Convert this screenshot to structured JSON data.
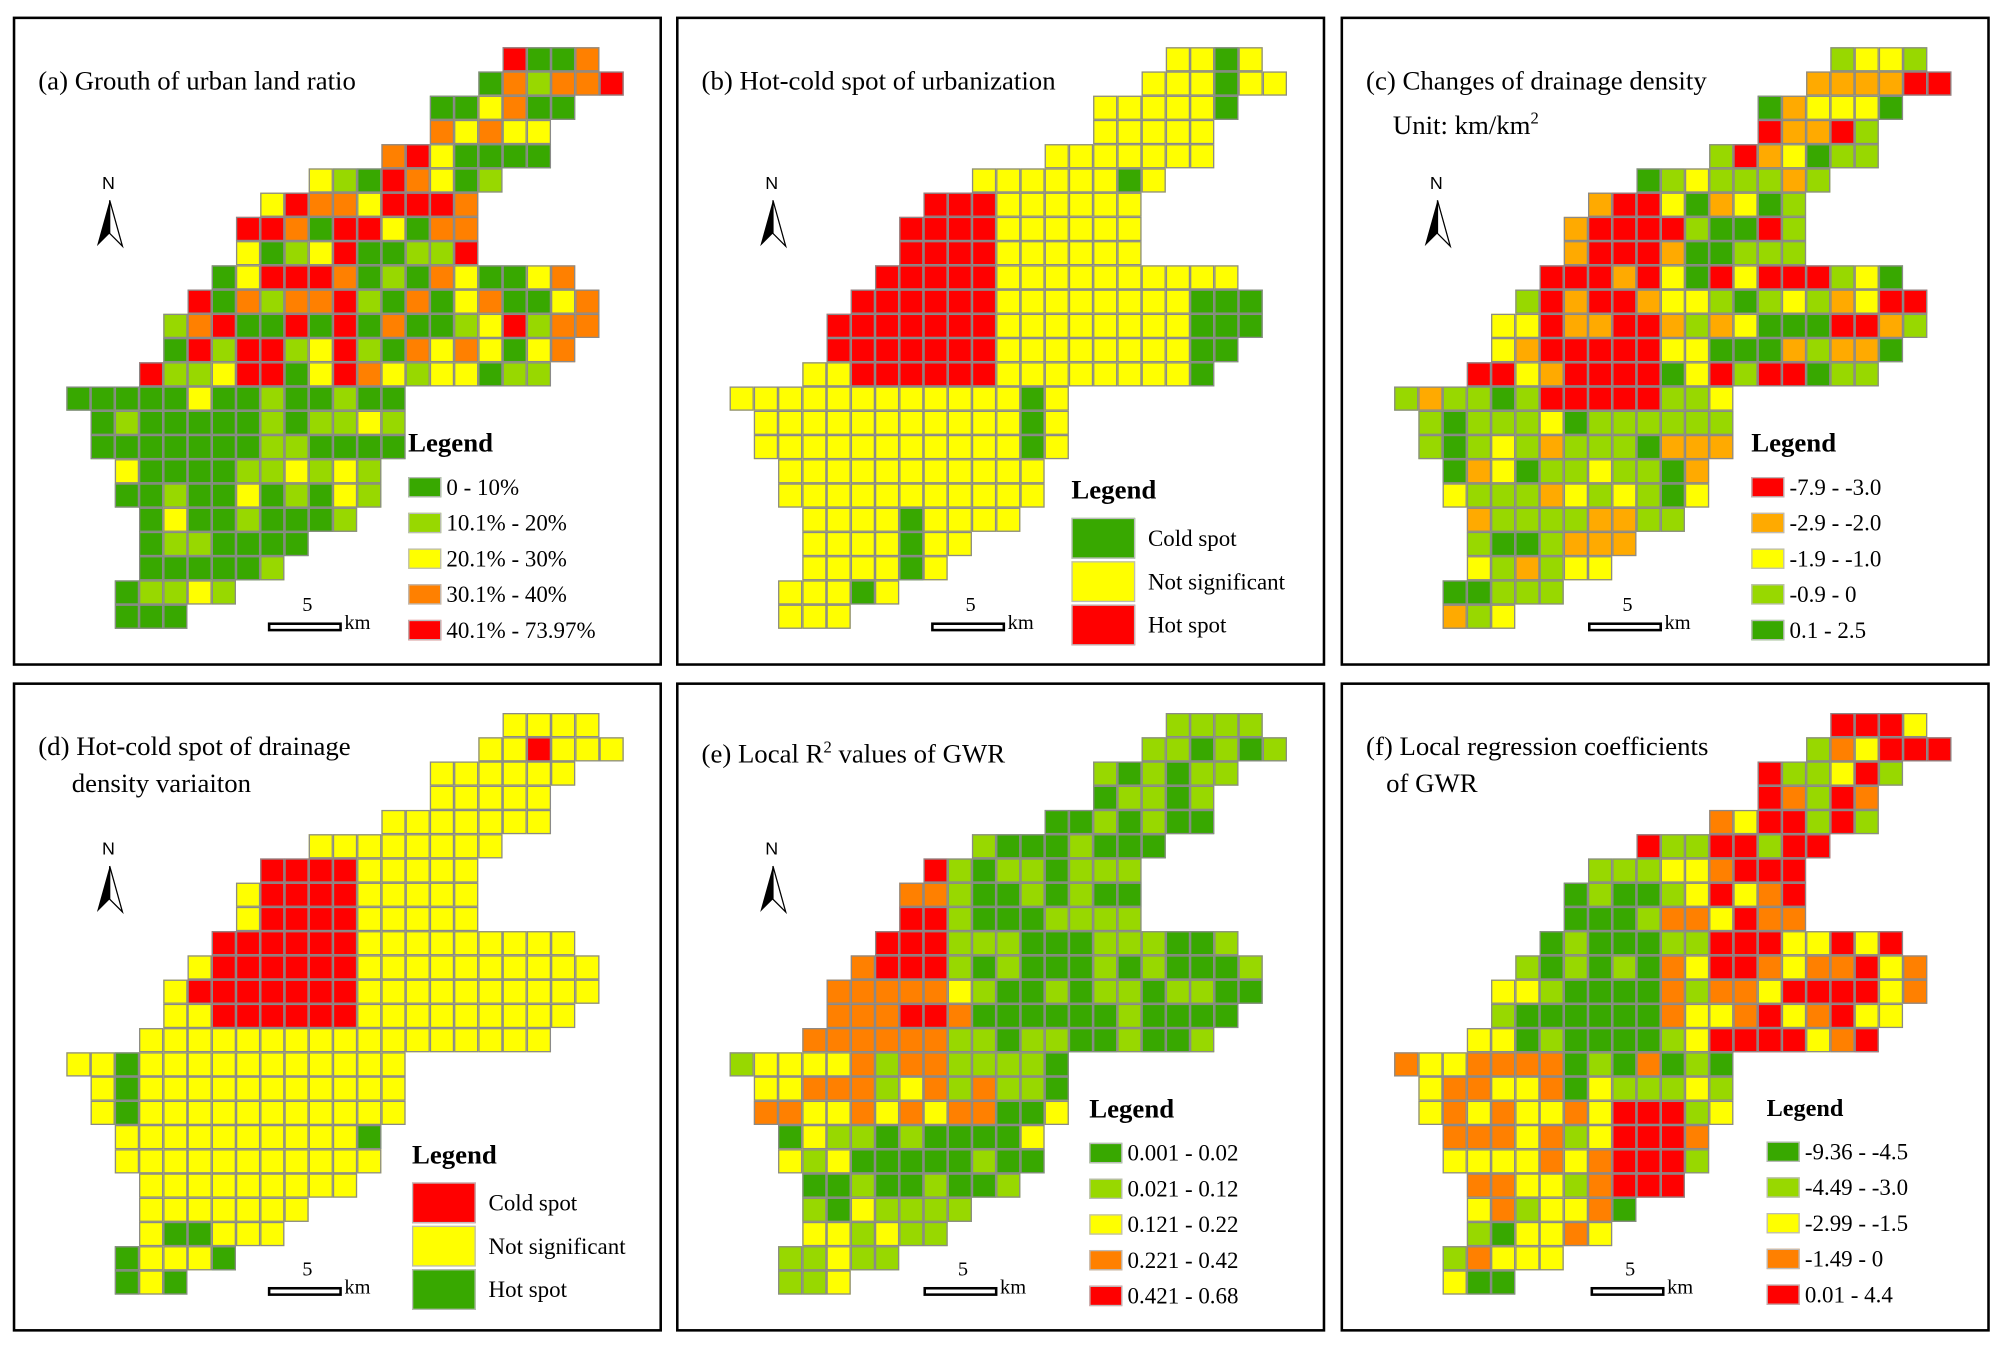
{
  "colors": {
    "dark_green": "#38a800",
    "light_green": "#98d800",
    "yellow": "#ffff00",
    "orange": "#ff8000",
    "amber": "#ffaa00",
    "red": "#ff0000",
    "cell_border": "#8a8a8a"
  },
  "north_label": "N",
  "scale": {
    "value": "5",
    "unit": "km"
  },
  "legend_title": "Legend",
  "panels": [
    {
      "id": "a",
      "title": "(a) Grouth of urban land ratio",
      "legend": [
        {
          "label": "0 - 10%",
          "color": "#38a800"
        },
        {
          "label": "10.1% - 20%",
          "color": "#98d800"
        },
        {
          "label": "20.1% - 30%",
          "color": "#ffff00"
        },
        {
          "label": "30.1% - 40%",
          "color": "#ff8000"
        },
        {
          "label": "40.1% - 73.97%",
          "color": "#ff0000"
        }
      ]
    },
    {
      "id": "b",
      "title": "(b) Hot-cold spot of urbanization",
      "legend": [
        {
          "label": "Cold spot",
          "color": "#38a800"
        },
        {
          "label": "Not significant",
          "color": "#ffff00"
        },
        {
          "label": "Hot spot",
          "color": "#ff0000"
        }
      ]
    },
    {
      "id": "c",
      "title": "(c) Changes of drainage density",
      "subtitle": "Unit: km/km",
      "subtitle_sup": "2",
      "legend": [
        {
          "label": "-7.9 - -3.0",
          "color": "#ff0000"
        },
        {
          "label": "-2.9 - -2.0",
          "color": "#ffaa00"
        },
        {
          "label": "-1.9 - -1.0",
          "color": "#ffff00"
        },
        {
          "label": "-0.9 - 0",
          "color": "#98d800"
        },
        {
          "label": "0.1 - 2.5",
          "color": "#38a800"
        }
      ]
    },
    {
      "id": "d",
      "title": "(d) Hot-cold spot of drainage",
      "subtitle": "density variaiton",
      "legend": [
        {
          "label": "Cold spot",
          "color": "#ff0000"
        },
        {
          "label": "Not significant",
          "color": "#ffff00"
        },
        {
          "label": "Hot spot",
          "color": "#38a800"
        }
      ]
    },
    {
      "id": "e",
      "title": "(e) Local R",
      "title_sup": "2",
      "title_rest": " values of GWR",
      "legend": [
        {
          "label": "0.001 - 0.02",
          "color": "#38a800"
        },
        {
          "label": "0.021 - 0.12",
          "color": "#98d800"
        },
        {
          "label": "0.121 - 0.22",
          "color": "#ffff00"
        },
        {
          "label": "0.221 - 0.42",
          "color": "#ff8000"
        },
        {
          "label": "0.421 - 0.68",
          "color": "#ff0000"
        }
      ]
    },
    {
      "id": "f",
      "title": "(f) Local regression coefficients",
      "subtitle": "of GWR",
      "legend": [
        {
          "label": "-9.36 - -4.5",
          "color": "#38a800"
        },
        {
          "label": "-4.49 - -3.0",
          "color": "#98d800"
        },
        {
          "label": "-2.99 - -1.5",
          "color": "#ffff00"
        },
        {
          "label": "-1.49 - 0",
          "color": "#ff8000"
        },
        {
          "label": "0.01 - 4.4",
          "color": "#ff0000"
        }
      ]
    }
  ]
}
